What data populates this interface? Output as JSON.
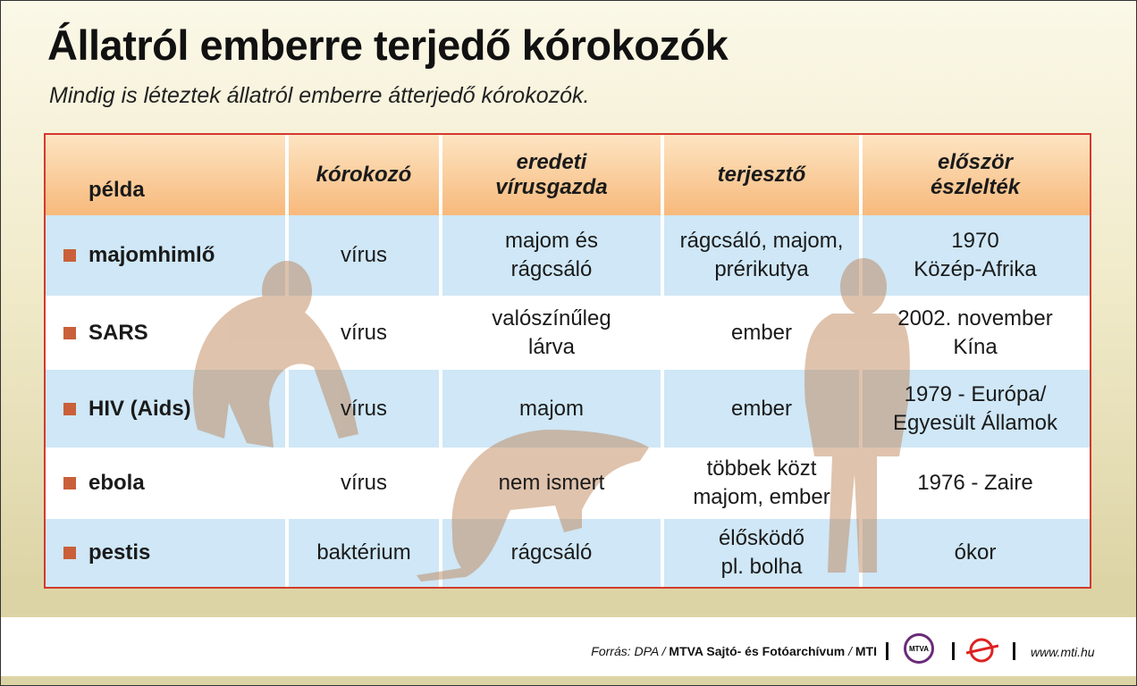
{
  "header": {
    "title": "Állatról emberre terjedő kórokozók",
    "subtitle": "Mindig is léteztek állatról emberre átterjedő kórokozók."
  },
  "table": {
    "columns": [
      [
        "példa"
      ],
      [
        "kórokozó"
      ],
      [
        "eredeti",
        "vírusgazda"
      ],
      [
        "terjesztő"
      ],
      [
        "először",
        "észlelték"
      ]
    ],
    "rows": [
      [
        [
          "majomhimlő"
        ],
        [
          "vírus"
        ],
        [
          "majom és",
          "rágcsáló"
        ],
        [
          "rágcsáló, majom,",
          "prérikutya"
        ],
        [
          "1970",
          "Közép-Afrika"
        ]
      ],
      [
        [
          "SARS"
        ],
        [
          "vírus"
        ],
        [
          "valószínűleg",
          "lárva"
        ],
        [
          "ember"
        ],
        [
          "2002. november",
          "Kína"
        ]
      ],
      [
        [
          "HIV (Aids)"
        ],
        [
          "vírus"
        ],
        [
          "majom"
        ],
        [
          "ember"
        ],
        [
          "1979 - Európa/",
          "Egyesült Államok"
        ]
      ],
      [
        [
          "ebola"
        ],
        [
          "vírus"
        ],
        [
          "nem ismert"
        ],
        [
          "többek közt",
          "majom, ember"
        ],
        [
          "1976 - Zaire"
        ]
      ],
      [
        [
          "pestis"
        ],
        [
          "baktérium"
        ],
        [
          "rágcsáló"
        ],
        [
          "élősködő",
          "pl. bolha"
        ],
        [
          "ókor"
        ]
      ]
    ]
  },
  "footer": {
    "source_prefix": "Forrás: DPA /",
    "source_archive": "MTVA Sajtó- és Fotóarchívum",
    "source_slash": "/",
    "source_agency": "MTI",
    "logo": "MTVA",
    "website": "www.mti.hu"
  }
}
